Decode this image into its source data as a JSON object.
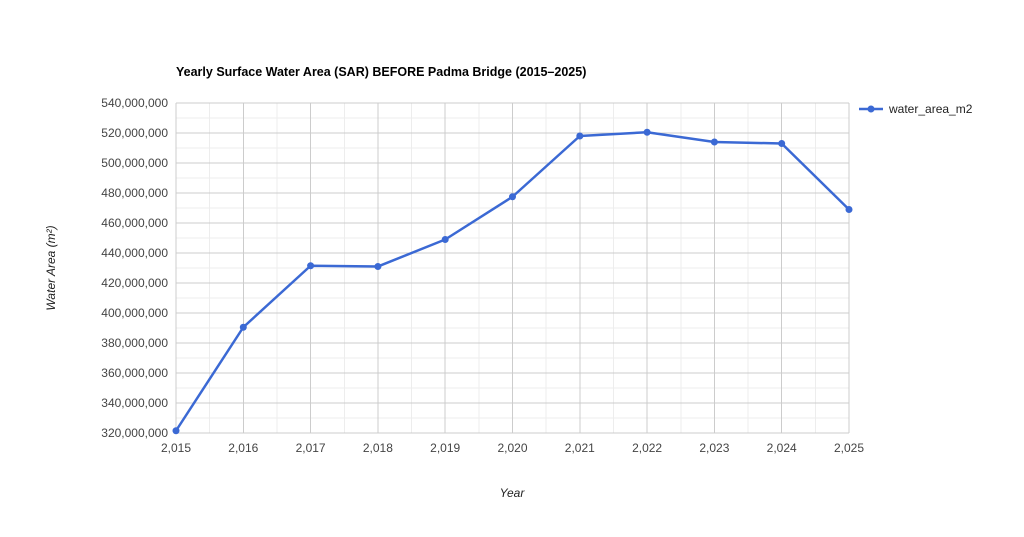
{
  "chart": {
    "title": "Yearly Surface Water Area (SAR) BEFORE Padma Bridge (2015–2025)",
    "legend_label": "water_area_m2",
    "x_axis": {
      "title": "Year"
    },
    "y_axis": {
      "title": "Water Area (m²)"
    }
  },
  "chart_data": {
    "type": "line",
    "title": "Yearly Surface Water Area (SAR) BEFORE Padma Bridge (2015–2025)",
    "xlabel": "Year",
    "ylabel": "Water Area (m²)",
    "x": [
      2015,
      2016,
      2017,
      2018,
      2019,
      2020,
      2021,
      2022,
      2023,
      2024,
      2025
    ],
    "x_tick_labels": [
      "2,015",
      "2,016",
      "2,017",
      "2,018",
      "2,019",
      "2,020",
      "2,021",
      "2,022",
      "2,023",
      "2,024",
      "2,025"
    ],
    "series": [
      {
        "name": "water_area_m2",
        "values": [
          321500000,
          390500000,
          431500000,
          431000000,
          449000000,
          477500000,
          518000000,
          520500000,
          514000000,
          513000000,
          469000000
        ]
      }
    ],
    "ylim": [
      320000000,
      540000000
    ],
    "y_tick_step": 20000000,
    "y_minor_step": 10000000,
    "y_tick_labels": [
      "320,000,000",
      "340,000,000",
      "360,000,000",
      "380,000,000",
      "400,000,000",
      "420,000,000",
      "440,000,000",
      "460,000,000",
      "480,000,000",
      "500,000,000",
      "520,000,000",
      "540,000,000"
    ],
    "grid": true,
    "minor_grid": true,
    "legend_position": "top-right",
    "series_color": "#3b69d4",
    "major_grid_color": "#cccccc",
    "minor_grid_color": "#ededed",
    "tick_label_color": "#444444",
    "title_color": "#000000",
    "axis_title_color": "#222222"
  }
}
